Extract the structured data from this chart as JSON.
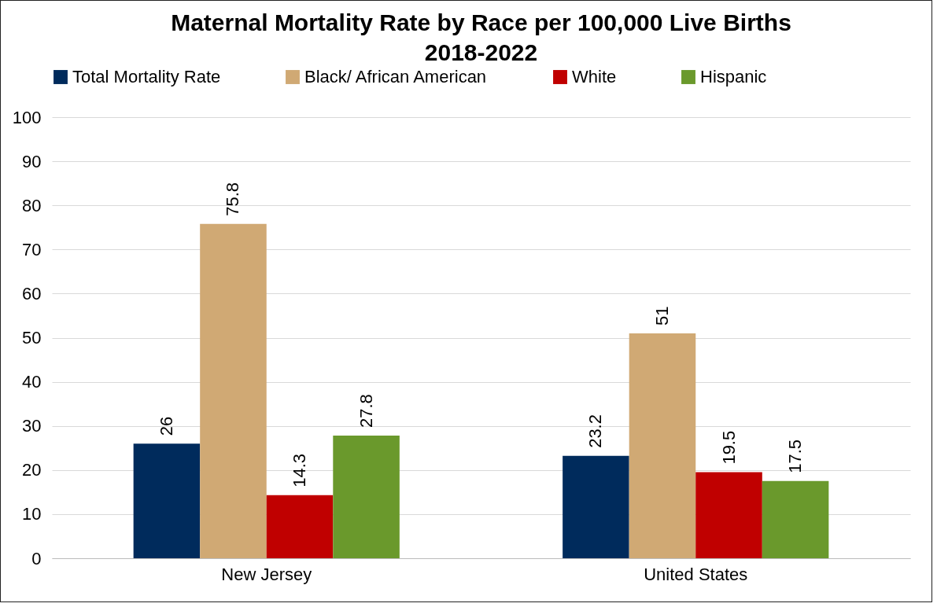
{
  "chart_data": {
    "type": "bar",
    "title": "Maternal Mortality Rate by Race per 100,000 Live Births",
    "subtitle": "2018-2022",
    "categories": [
      "New Jersey",
      "United States"
    ],
    "series": [
      {
        "name": "Total Mortality Rate",
        "color": "#002b5c",
        "values": [
          26,
          23.2
        ]
      },
      {
        "name": "Black/ African American",
        "color": "#d0a974",
        "values": [
          75.8,
          51
        ]
      },
      {
        "name": "White",
        "color": "#c00000",
        "values": [
          14.3,
          19.5
        ]
      },
      {
        "name": "Hispanic",
        "color": "#6a992c",
        "values": [
          27.8,
          17.5
        ]
      }
    ],
    "ylim": [
      0,
      100
    ],
    "yticks": [
      0,
      10,
      20,
      30,
      40,
      50,
      60,
      70,
      80,
      90,
      100
    ],
    "grid": "y",
    "legend": "top",
    "data_labels": true
  }
}
